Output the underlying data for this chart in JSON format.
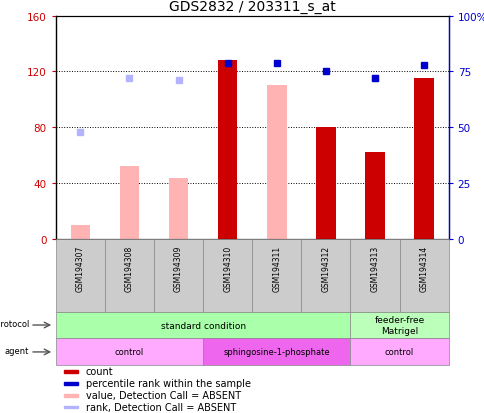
{
  "title": "GDS2832 / 203311_s_at",
  "samples": [
    "GSM194307",
    "GSM194308",
    "GSM194309",
    "GSM194310",
    "GSM194311",
    "GSM194312",
    "GSM194313",
    "GSM194314"
  ],
  "count": [
    null,
    null,
    null,
    128,
    null,
    80,
    62,
    115
  ],
  "percentile_rank": [
    null,
    null,
    null,
    79,
    79,
    75,
    72,
    78
  ],
  "value_absent": [
    10,
    52,
    44,
    null,
    110,
    null,
    null,
    null
  ],
  "rank_absent": [
    48,
    72,
    71,
    null,
    null,
    null,
    72,
    null
  ],
  "ylim_left": [
    0,
    160
  ],
  "ylim_right": [
    0,
    100
  ],
  "yticks_left": [
    0,
    40,
    80,
    120,
    160
  ],
  "yticks_right": [
    0,
    25,
    50,
    75,
    100
  ],
  "ytick_labels_left": [
    "0",
    "40",
    "80",
    "120",
    "160"
  ],
  "ytick_labels_right": [
    "0",
    "25",
    "50",
    "75",
    "100%"
  ],
  "color_count": "#cc0000",
  "color_percentile": "#0000cc",
  "color_value_absent": "#ffb3b3",
  "color_rank_absent": "#b3b3ff",
  "growth_protocol_labels": [
    {
      "label": "standard condition",
      "start": 0,
      "end": 6,
      "color": "#aaffaa"
    },
    {
      "label": "feeder-free\nMatrigel",
      "start": 6,
      "end": 8,
      "color": "#bbffbb"
    }
  ],
  "agent_labels": [
    {
      "label": "control",
      "start": 0,
      "end": 3,
      "color": "#ffaaff"
    },
    {
      "label": "sphingosine-1-phosphate",
      "start": 3,
      "end": 6,
      "color": "#ee66ee"
    },
    {
      "label": "control",
      "start": 6,
      "end": 8,
      "color": "#ffaaff"
    }
  ],
  "legend_items": [
    {
      "label": "count",
      "color": "#cc0000"
    },
    {
      "label": "percentile rank within the sample",
      "color": "#0000cc"
    },
    {
      "label": "value, Detection Call = ABSENT",
      "color": "#ffb3b3"
    },
    {
      "label": "rank, Detection Call = ABSENT",
      "color": "#b3b3ff"
    }
  ]
}
